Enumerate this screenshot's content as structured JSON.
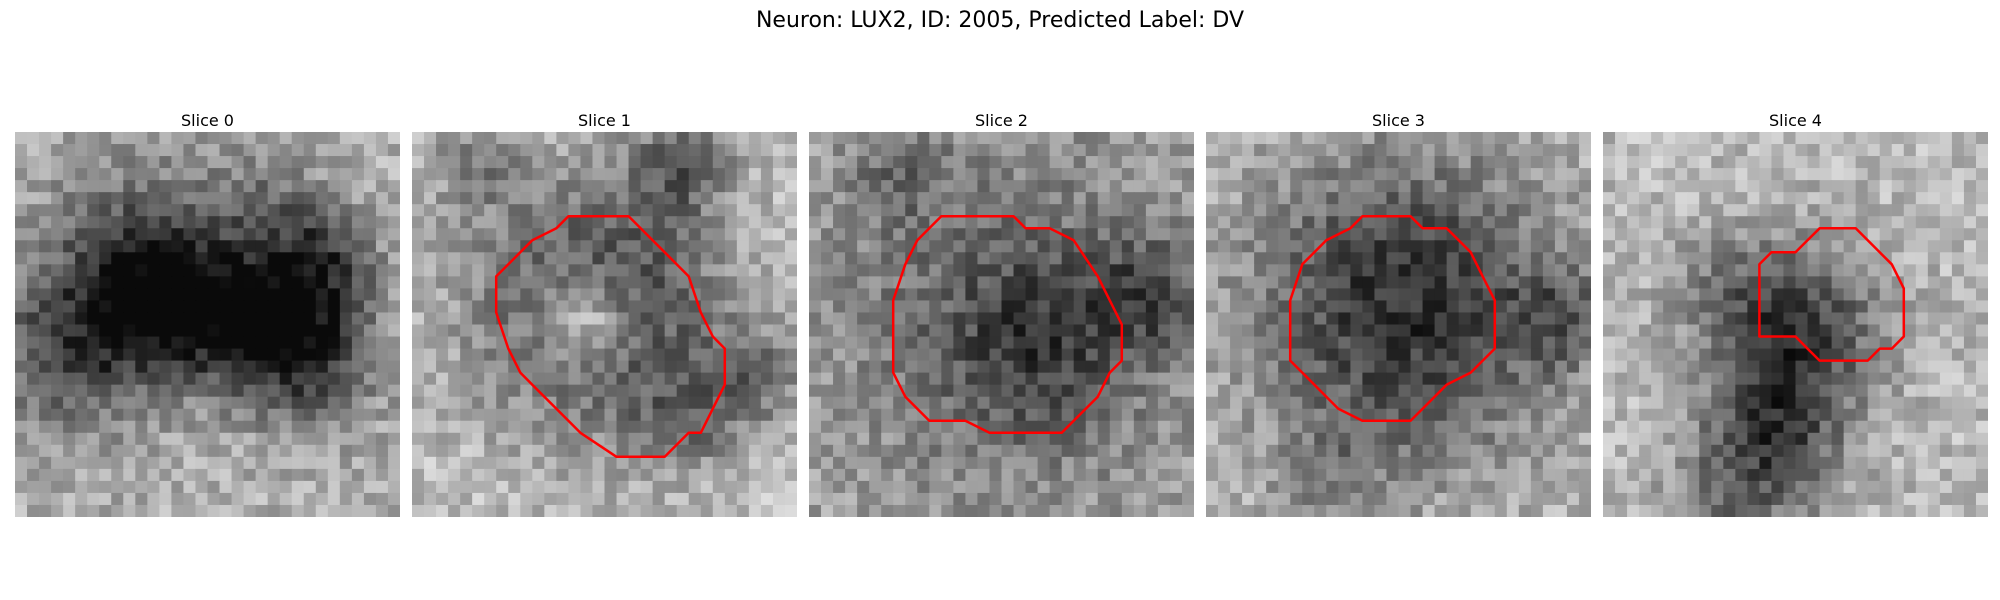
{
  "figure": {
    "title": "Neuron: LUX2, ID: 2005, Predicted Label: DV",
    "contour_color": "#ff0000"
  },
  "slices": [
    {
      "title": "Slice 0",
      "has_contour": false
    },
    {
      "title": "Slice 1",
      "has_contour": true
    },
    {
      "title": "Slice 2",
      "has_contour": true
    },
    {
      "title": "Slice 3",
      "has_contour": true
    },
    {
      "title": "Slice 4",
      "has_contour": true
    }
  ]
}
